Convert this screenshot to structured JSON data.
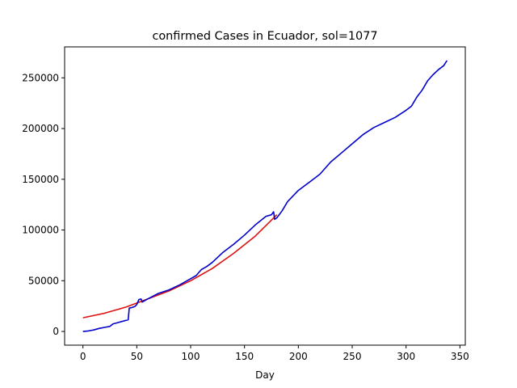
{
  "chart_data": {
    "type": "line",
    "title": "confirmed Cases in Ecuador, sol=1077",
    "xlabel": "Day",
    "ylabel": "",
    "xlim": [
      -17,
      355
    ],
    "ylim": [
      -13500,
      280500
    ],
    "xticks": [
      0,
      50,
      100,
      150,
      200,
      250,
      300,
      350
    ],
    "yticks": [
      0,
      50000,
      100000,
      150000,
      200000,
      250000
    ],
    "grid": false,
    "series": [
      {
        "color": "#dd1111",
        "x": [
          0,
          20,
          40,
          60,
          80,
          100,
          120,
          140,
          160,
          180
        ],
        "y": [
          13500,
          18000,
          24000,
          32000,
          40000,
          50000,
          62000,
          77000,
          94000,
          115000
        ]
      },
      {
        "color": "#0000cc",
        "x": [
          0,
          5,
          10,
          15,
          20,
          25,
          28,
          30,
          35,
          40,
          42,
          43,
          45,
          48,
          50,
          52,
          54,
          55,
          60,
          70,
          80,
          90,
          100,
          105,
          110,
          115,
          120,
          130,
          140,
          150,
          160,
          170,
          175,
          177,
          178,
          180,
          185,
          190,
          200,
          210,
          220,
          230,
          240,
          250,
          260,
          270,
          280,
          290,
          300,
          305,
          310,
          315,
          320,
          325,
          330,
          335,
          338
        ],
        "y": [
          0,
          500,
          1500,
          3000,
          4000,
          5000,
          7500,
          8000,
          9500,
          11000,
          11500,
          23000,
          23500,
          24500,
          26500,
          31500,
          32000,
          29000,
          32000,
          37500,
          41000,
          46000,
          52000,
          55000,
          61000,
          64000,
          68000,
          78000,
          86000,
          95000,
          105000,
          113500,
          115000,
          118000,
          110500,
          112000,
          119000,
          128000,
          139000,
          147000,
          155000,
          167000,
          176000,
          185000,
          194000,
          201000,
          206000,
          211000,
          218000,
          222000,
          231000,
          238000,
          247000,
          253000,
          258000,
          262000,
          267000
        ]
      }
    ]
  }
}
